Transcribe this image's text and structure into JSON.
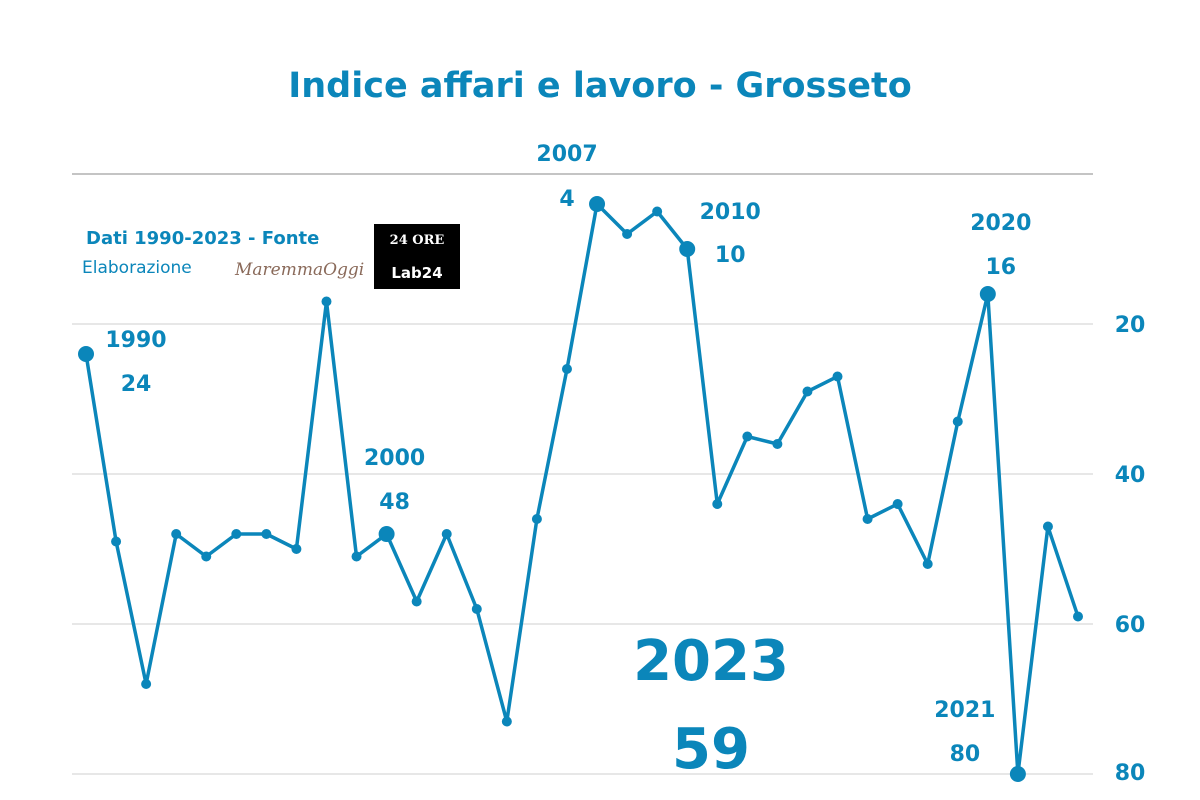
{
  "chart_data": {
    "type": "line",
    "title": "Indice affari e lavoro - Grosseto",
    "xlabel": "",
    "ylabel": "",
    "y_inverted": true,
    "ylim": [
      0,
      80
    ],
    "yticks": [
      "20",
      "40",
      "60",
      "80"
    ],
    "grid": true,
    "series": [
      {
        "name": "Indice affari e lavoro",
        "color": "#0b86ba",
        "x": [
          1990,
          1991,
          1992,
          1993,
          1994,
          1995,
          1996,
          1997,
          1998,
          1999,
          2000,
          2001,
          2002,
          2003,
          2004,
          2005,
          2006,
          2007,
          2008,
          2009,
          2010,
          2011,
          2012,
          2013,
          2014,
          2015,
          2016,
          2017,
          2018,
          2019,
          2020,
          2021,
          2022,
          2023
        ],
        "values": [
          24,
          49,
          68,
          48,
          51,
          48,
          48,
          50,
          17,
          51,
          48,
          57,
          48,
          58,
          73,
          46,
          26,
          4,
          8,
          5,
          10,
          44,
          35,
          36,
          29,
          27,
          46,
          44,
          52,
          33,
          16,
          80,
          47,
          59
        ]
      }
    ],
    "annotations": [
      {
        "year": "1990",
        "value": "24"
      },
      {
        "year": "2000",
        "value": "48"
      },
      {
        "year": "2007",
        "value": "4"
      },
      {
        "year": "2010",
        "value": "10"
      },
      {
        "year": "2020",
        "value": "16"
      },
      {
        "year": "2021",
        "value": "80"
      },
      {
        "year": "2023",
        "value": "59"
      }
    ]
  },
  "source": {
    "line1": "Dati 1990-2023 - Fonte",
    "line2": "Elaborazione",
    "logo_maremma": "MaremmaOggi",
    "logo_24ore": "24 ORE",
    "logo_lab24": "Lab24"
  }
}
